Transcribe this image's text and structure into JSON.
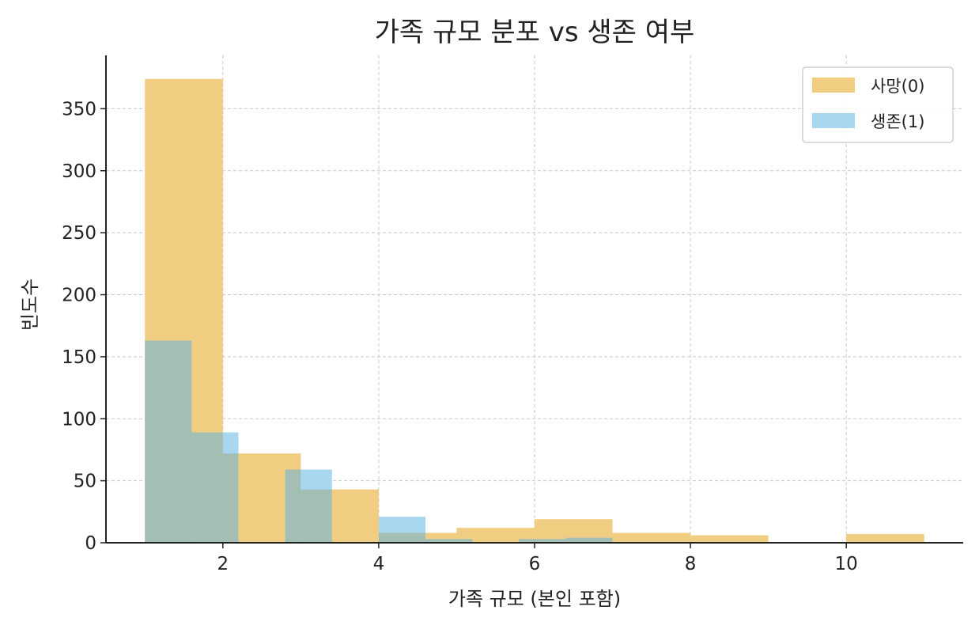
{
  "chart_data": {
    "type": "histogram",
    "title": "가족 규모 분포 vs 생존 여부",
    "xlabel": "가족 규모 (본인 포함)",
    "ylabel": "빈도수",
    "xlim": [
      0.5,
      11.5
    ],
    "ylim": [
      0,
      393
    ],
    "xticks": [
      2,
      4,
      6,
      8,
      10
    ],
    "yticks": [
      0,
      50,
      100,
      150,
      200,
      250,
      300,
      350
    ],
    "grid": true,
    "legend_position": "top-right",
    "series": [
      {
        "name": "사망(0)",
        "color": "#f0cd80",
        "bins": [
          {
            "x0": 1.0,
            "x1": 2.0,
            "value": 374
          },
          {
            "x0": 2.0,
            "x1": 3.0,
            "value": 72
          },
          {
            "x0": 3.0,
            "x1": 4.0,
            "value": 43
          },
          {
            "x0": 4.0,
            "x1": 5.0,
            "value": 8
          },
          {
            "x0": 5.0,
            "x1": 6.0,
            "value": 12
          },
          {
            "x0": 6.0,
            "x1": 7.0,
            "value": 19
          },
          {
            "x0": 7.0,
            "x1": 8.0,
            "value": 8
          },
          {
            "x0": 8.0,
            "x1": 9.0,
            "value": 6
          },
          {
            "x0": 9.0,
            "x1": 10.0,
            "value": 0
          },
          {
            "x0": 10.0,
            "x1": 11.0,
            "value": 7
          }
        ]
      },
      {
        "name": "생존(1)",
        "color": "#a9d7f0",
        "bins": [
          {
            "x0": 1.0,
            "x1": 1.6,
            "value": 163
          },
          {
            "x0": 1.6,
            "x1": 2.2,
            "value": 89
          },
          {
            "x0": 2.2,
            "x1": 2.8,
            "value": 0
          },
          {
            "x0": 2.8,
            "x1": 3.4,
            "value": 59
          },
          {
            "x0": 3.4,
            "x1": 4.0,
            "value": 0
          },
          {
            "x0": 4.0,
            "x1": 4.6,
            "value": 21
          },
          {
            "x0": 4.6,
            "x1": 5.2,
            "value": 3
          },
          {
            "x0": 5.2,
            "x1": 5.8,
            "value": 0
          },
          {
            "x0": 5.8,
            "x1": 6.4,
            "value": 3
          },
          {
            "x0": 6.4,
            "x1": 7.0,
            "value": 4
          }
        ]
      }
    ],
    "overlap_color": "#a3bfb4"
  }
}
